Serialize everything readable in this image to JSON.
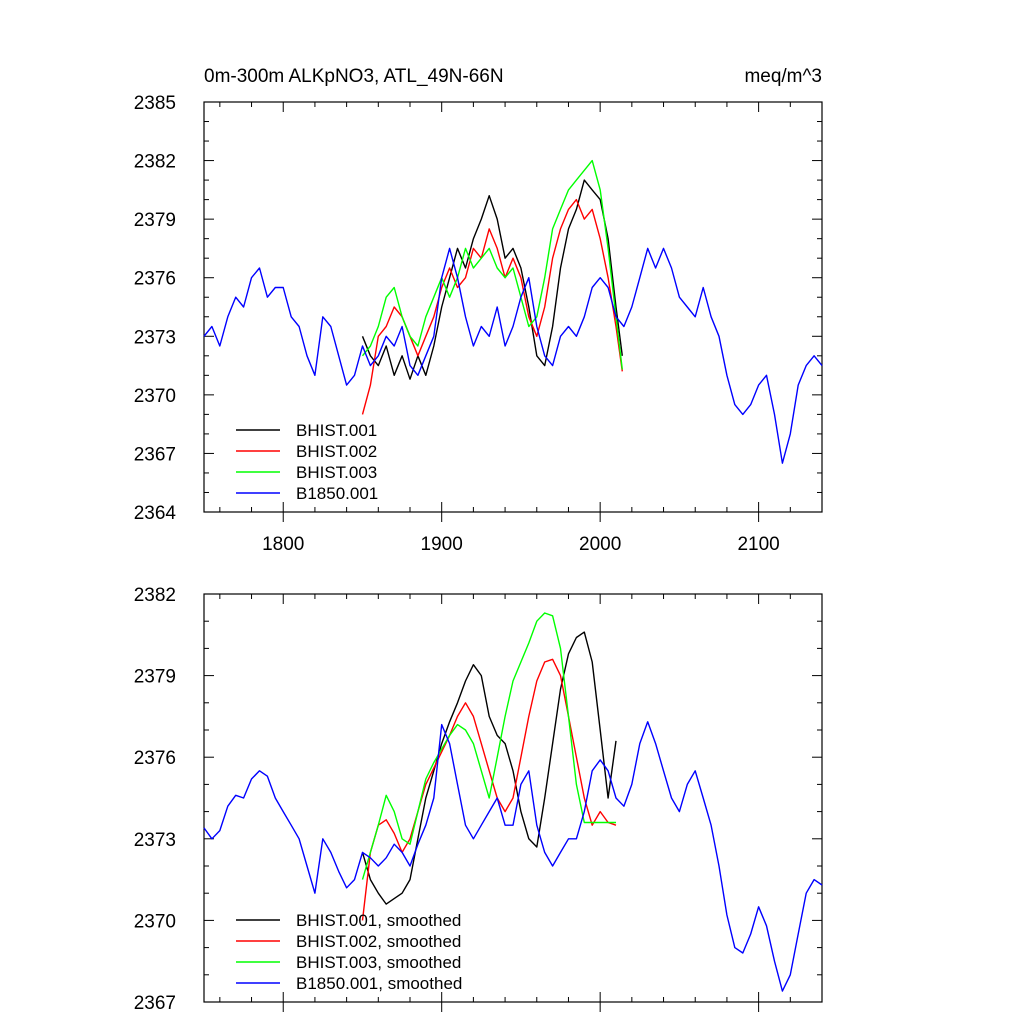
{
  "figure": {
    "title_left": "0m-300m ALKpNO3, ATL_49N-66N",
    "title_right": "meq/m^3"
  },
  "chart_data": [
    {
      "type": "line",
      "title": "0m-300m ALKpNO3, ATL_49N-66N",
      "units": "meq/m^3",
      "xlim": [
        1750,
        2140
      ],
      "ylim": [
        2364,
        2385
      ],
      "xticks": [
        1800,
        1900,
        2000,
        2100
      ],
      "yticks": [
        2364,
        2367,
        2370,
        2373,
        2376,
        2379,
        2382,
        2385
      ],
      "show_x_labels": true,
      "legend_position": "bottom-left",
      "series": [
        {
          "name": "BHIST.001",
          "color": "#000000",
          "x": [
            1850,
            1855,
            1860,
            1865,
            1870,
            1875,
            1880,
            1885,
            1890,
            1895,
            1900,
            1905,
            1910,
            1915,
            1920,
            1925,
            1930,
            1935,
            1940,
            1945,
            1950,
            1955,
            1960,
            1965,
            1970,
            1975,
            1980,
            1985,
            1990,
            1995,
            2000,
            2005,
            2010,
            2014
          ],
          "y": [
            2373.0,
            2372.0,
            2371.5,
            2372.5,
            2371.0,
            2372.0,
            2370.8,
            2372.0,
            2371.0,
            2372.5,
            2374.5,
            2376.0,
            2377.5,
            2376.5,
            2378.0,
            2379.0,
            2380.2,
            2379.0,
            2377.0,
            2377.5,
            2376.5,
            2374.5,
            2372.0,
            2371.5,
            2373.5,
            2376.5,
            2378.5,
            2379.5,
            2381.0,
            2380.5,
            2380.0,
            2378.0,
            2374.5,
            2372.0
          ]
        },
        {
          "name": "BHIST.002",
          "color": "#ff0000",
          "x": [
            1850,
            1855,
            1860,
            1865,
            1870,
            1875,
            1880,
            1885,
            1890,
            1895,
            1900,
            1905,
            1910,
            1915,
            1920,
            1925,
            1930,
            1935,
            1940,
            1945,
            1950,
            1955,
            1960,
            1965,
            1970,
            1975,
            1980,
            1985,
            1990,
            1995,
            2000,
            2005,
            2010,
            2014
          ],
          "y": [
            2369.0,
            2370.5,
            2373.0,
            2373.5,
            2374.5,
            2374.0,
            2373.0,
            2372.0,
            2373.0,
            2374.0,
            2375.5,
            2376.5,
            2375.5,
            2376.0,
            2377.5,
            2377.0,
            2378.5,
            2377.5,
            2376.0,
            2377.0,
            2376.0,
            2374.0,
            2373.0,
            2374.5,
            2377.0,
            2378.5,
            2379.5,
            2380.0,
            2379.0,
            2379.5,
            2378.0,
            2376.0,
            2373.5,
            2371.2
          ]
        },
        {
          "name": "BHIST.003",
          "color": "#00ff00",
          "x": [
            1850,
            1855,
            1860,
            1865,
            1870,
            1875,
            1880,
            1885,
            1890,
            1895,
            1900,
            1905,
            1910,
            1915,
            1920,
            1925,
            1930,
            1935,
            1940,
            1945,
            1950,
            1955,
            1960,
            1965,
            1970,
            1975,
            1980,
            1985,
            1990,
            1995,
            2000,
            2005,
            2010,
            2014
          ],
          "y": [
            2372.0,
            2372.5,
            2373.5,
            2375.0,
            2375.5,
            2374.0,
            2373.0,
            2372.5,
            2374.0,
            2375.0,
            2376.0,
            2375.0,
            2376.0,
            2377.5,
            2376.5,
            2377.0,
            2377.5,
            2376.5,
            2376.0,
            2376.5,
            2375.0,
            2373.5,
            2374.0,
            2376.0,
            2378.5,
            2379.5,
            2380.5,
            2381.0,
            2381.5,
            2382.0,
            2380.5,
            2377.5,
            2374.0,
            2371.3
          ]
        },
        {
          "name": "B1850.001",
          "color": "#0000ff",
          "x": [
            1750,
            1755,
            1760,
            1765,
            1770,
            1775,
            1780,
            1785,
            1790,
            1795,
            1800,
            1805,
            1810,
            1815,
            1820,
            1825,
            1830,
            1835,
            1840,
            1845,
            1850,
            1855,
            1860,
            1865,
            1870,
            1875,
            1880,
            1885,
            1890,
            1895,
            1900,
            1905,
            1910,
            1915,
            1920,
            1925,
            1930,
            1935,
            1940,
            1945,
            1950,
            1955,
            1960,
            1965,
            1970,
            1975,
            1980,
            1985,
            1990,
            1995,
            2000,
            2005,
            2010,
            2015,
            2020,
            2025,
            2030,
            2035,
            2040,
            2045,
            2050,
            2055,
            2060,
            2065,
            2070,
            2075,
            2080,
            2085,
            2090,
            2095,
            2100,
            2105,
            2110,
            2115,
            2120,
            2125,
            2130,
            2135,
            2140
          ],
          "y": [
            2373.0,
            2373.5,
            2372.5,
            2374.0,
            2375.0,
            2374.5,
            2376.0,
            2376.5,
            2375.0,
            2375.5,
            2375.5,
            2374.0,
            2373.5,
            2372.0,
            2371.0,
            2374.0,
            2373.5,
            2372.0,
            2370.5,
            2371.0,
            2372.5,
            2371.5,
            2372.0,
            2373.0,
            2372.5,
            2373.5,
            2371.5,
            2371.0,
            2372.0,
            2373.0,
            2376.0,
            2377.5,
            2376.0,
            2374.0,
            2372.5,
            2373.5,
            2373.0,
            2374.5,
            2372.5,
            2373.5,
            2375.0,
            2376.0,
            2373.5,
            2372.0,
            2371.5,
            2373.0,
            2373.5,
            2373.0,
            2374.0,
            2375.5,
            2376.0,
            2375.5,
            2374.0,
            2373.5,
            2374.5,
            2376.0,
            2377.5,
            2376.5,
            2377.5,
            2376.5,
            2375.0,
            2374.5,
            2374.0,
            2375.5,
            2374.0,
            2373.0,
            2371.0,
            2369.5,
            2369.0,
            2369.5,
            2370.5,
            2371.0,
            2369.0,
            2366.5,
            2368.0,
            2370.5,
            2371.5,
            2372.0,
            2371.5
          ]
        }
      ]
    },
    {
      "type": "line",
      "xlim": [
        1750,
        2140
      ],
      "ylim": [
        2367,
        2382
      ],
      "xticks": [
        1800,
        1900,
        2000,
        2100
      ],
      "yticks": [
        2367,
        2370,
        2373,
        2376,
        2379,
        2382
      ],
      "show_x_labels": false,
      "legend_position": "bottom-left",
      "series": [
        {
          "name": "BHIST.001, smoothed",
          "color": "#000000",
          "x": [
            1850,
            1855,
            1860,
            1865,
            1870,
            1875,
            1880,
            1885,
            1890,
            1895,
            1900,
            1905,
            1910,
            1915,
            1920,
            1925,
            1930,
            1935,
            1940,
            1945,
            1950,
            1955,
            1960,
            1965,
            1970,
            1975,
            1980,
            1985,
            1990,
            1995,
            2000,
            2005,
            2010
          ],
          "y": [
            2372.5,
            2371.5,
            2371.0,
            2370.6,
            2370.8,
            2371.0,
            2371.5,
            2373.0,
            2374.5,
            2375.5,
            2376.5,
            2377.3,
            2378.0,
            2378.8,
            2379.4,
            2379.0,
            2377.5,
            2376.8,
            2376.5,
            2375.5,
            2374.0,
            2373.0,
            2372.7,
            2374.5,
            2376.5,
            2378.5,
            2379.8,
            2380.4,
            2380.6,
            2379.5,
            2377.0,
            2374.5,
            2376.6
          ]
        },
        {
          "name": "BHIST.002, smoothed",
          "color": "#ff0000",
          "x": [
            1850,
            1855,
            1860,
            1865,
            1870,
            1875,
            1880,
            1885,
            1890,
            1895,
            1900,
            1905,
            1910,
            1915,
            1920,
            1925,
            1930,
            1935,
            1940,
            1945,
            1950,
            1955,
            1960,
            1965,
            1970,
            1975,
            1980,
            1985,
            1990,
            1995,
            2000,
            2005,
            2010
          ],
          "y": [
            2370.0,
            2372.5,
            2373.5,
            2373.7,
            2373.2,
            2372.5,
            2373.0,
            2374.0,
            2375.0,
            2375.6,
            2376.2,
            2376.8,
            2377.5,
            2378.0,
            2377.5,
            2376.5,
            2375.5,
            2374.5,
            2374.0,
            2374.5,
            2376.0,
            2377.5,
            2378.8,
            2379.5,
            2379.6,
            2379.0,
            2377.5,
            2376.0,
            2374.5,
            2373.5,
            2374.0,
            2373.6,
            2373.5
          ]
        },
        {
          "name": "BHIST.003, smoothed",
          "color": "#00ff00",
          "x": [
            1850,
            1855,
            1860,
            1865,
            1870,
            1875,
            1880,
            1885,
            1890,
            1895,
            1900,
            1905,
            1910,
            1915,
            1920,
            1925,
            1930,
            1935,
            1940,
            1945,
            1950,
            1955,
            1960,
            1965,
            1970,
            1975,
            1980,
            1985,
            1990,
            1995,
            2000,
            2005,
            2010
          ],
          "y": [
            2371.5,
            2372.5,
            2373.5,
            2374.6,
            2374.0,
            2373.0,
            2372.8,
            2374.0,
            2375.2,
            2375.8,
            2376.3,
            2376.8,
            2377.2,
            2377.0,
            2376.5,
            2375.5,
            2374.5,
            2376.0,
            2377.5,
            2378.8,
            2379.5,
            2380.2,
            2381.0,
            2381.3,
            2381.2,
            2380.0,
            2377.5,
            2375.0,
            2373.6,
            2373.6,
            2373.6,
            2373.6,
            2373.6
          ]
        },
        {
          "name": "B1850.001, smoothed",
          "color": "#0000ff",
          "x": [
            1750,
            1755,
            1760,
            1765,
            1770,
            1775,
            1780,
            1785,
            1790,
            1795,
            1800,
            1805,
            1810,
            1815,
            1820,
            1825,
            1830,
            1835,
            1840,
            1845,
            1850,
            1855,
            1860,
            1865,
            1870,
            1875,
            1880,
            1885,
            1890,
            1895,
            1900,
            1905,
            1910,
            1915,
            1920,
            1925,
            1930,
            1935,
            1940,
            1945,
            1950,
            1955,
            1960,
            1965,
            1970,
            1975,
            1980,
            1985,
            1990,
            1995,
            2000,
            2005,
            2010,
            2015,
            2020,
            2025,
            2030,
            2035,
            2040,
            2045,
            2050,
            2055,
            2060,
            2065,
            2070,
            2075,
            2080,
            2085,
            2090,
            2095,
            2100,
            2105,
            2110,
            2115,
            2120,
            2125,
            2130,
            2135,
            2140
          ],
          "y": [
            2373.4,
            2373.0,
            2373.3,
            2374.2,
            2374.6,
            2374.5,
            2375.2,
            2375.5,
            2375.3,
            2374.5,
            2374.0,
            2373.5,
            2373.0,
            2372.0,
            2371.0,
            2373.0,
            2372.5,
            2371.8,
            2371.2,
            2371.5,
            2372.5,
            2372.3,
            2372.0,
            2372.3,
            2372.8,
            2372.5,
            2372.0,
            2372.8,
            2373.5,
            2374.5,
            2377.2,
            2376.5,
            2375.0,
            2373.5,
            2373.0,
            2373.5,
            2374.0,
            2374.5,
            2373.5,
            2373.5,
            2375.0,
            2375.5,
            2373.5,
            2372.5,
            2372.0,
            2372.5,
            2373.0,
            2373.0,
            2374.0,
            2375.5,
            2375.9,
            2375.5,
            2374.5,
            2374.2,
            2375.0,
            2376.5,
            2377.3,
            2376.5,
            2375.5,
            2374.5,
            2374.0,
            2375.0,
            2375.5,
            2374.5,
            2373.5,
            2372.0,
            2370.2,
            2369.0,
            2368.8,
            2369.5,
            2370.5,
            2369.8,
            2368.5,
            2367.4,
            2368.0,
            2369.5,
            2371.0,
            2371.5,
            2371.3
          ]
        }
      ]
    }
  ]
}
